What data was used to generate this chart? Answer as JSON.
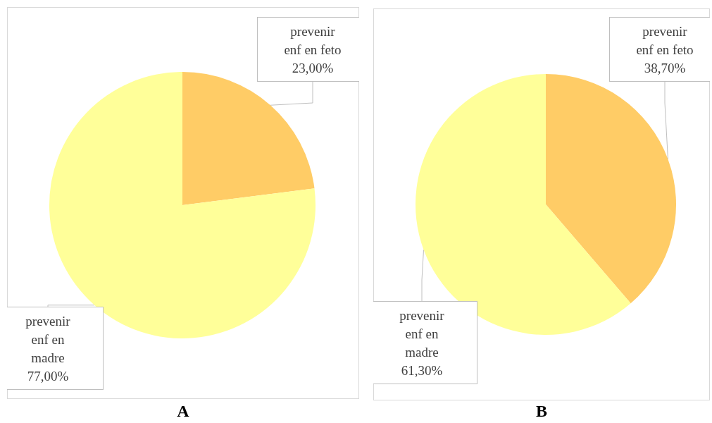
{
  "chart_data": [
    {
      "type": "pie",
      "title": "A",
      "categories": [
        "prevenir enf en feto",
        "prevenir enf en madre"
      ],
      "values": [
        23,
        77
      ],
      "value_labels": [
        "23,00%",
        "77,00%"
      ],
      "colors": [
        "#ffcc66",
        "#ffff99"
      ],
      "legend": false
    },
    {
      "type": "pie",
      "title": "B",
      "categories": [
        "prevenir enf en feto",
        "prevenir enf en madre"
      ],
      "values": [
        38.7,
        61.3
      ],
      "value_labels": [
        "38,70%",
        "61,30%"
      ],
      "colors": [
        "#ffcc66",
        "#ffff99"
      ],
      "legend": false
    }
  ]
}
